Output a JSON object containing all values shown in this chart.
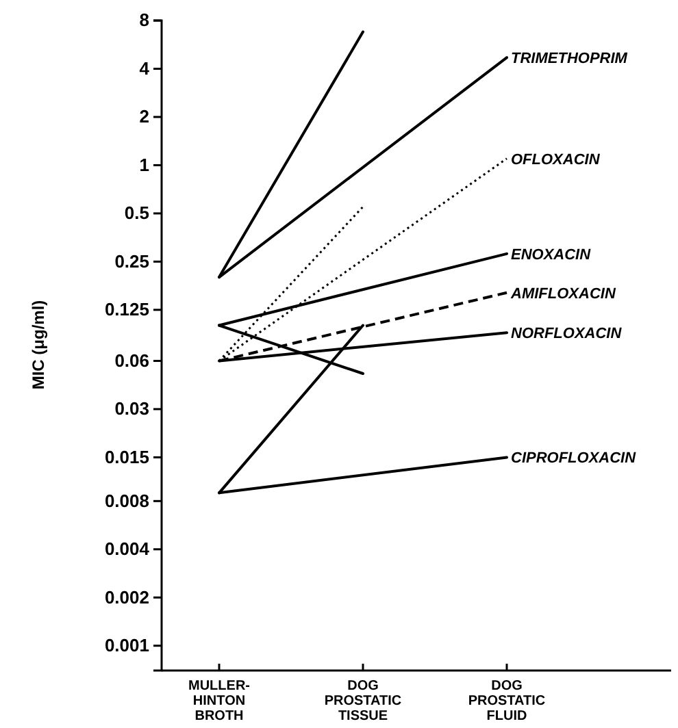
{
  "chart_data": {
    "type": "line",
    "ylabel": "MIC (μg/ml)",
    "categories": [
      "MULLER-\nHINTON\nBROTH",
      "DOG\nPROSTATIC\nTISSUE",
      "DOG\nPROSTATIC\nFLUID"
    ],
    "log": true,
    "ylim": [
      0.0007,
      8
    ],
    "yticks": [
      0.001,
      0.002,
      0.004,
      0.008,
      0.015,
      0.03,
      0.06,
      0.125,
      0.25,
      0.5,
      1,
      2,
      4,
      8
    ],
    "grid": false,
    "legend": false,
    "marker": "none",
    "series": [
      {
        "name": "TRIMETHOPRIM",
        "color": "#000000",
        "line_style": "solid",
        "values": [
          0.2,
          null,
          4.7
        ]
      },
      {
        "color": "#000000",
        "line_style": "solid",
        "values": [
          0.2,
          6.8,
          null
        ]
      },
      {
        "name": "OFLOXACIN",
        "color": "#000000",
        "line_style": "dotted",
        "values": [
          0.06,
          null,
          1.1
        ]
      },
      {
        "color": "#000000",
        "line_style": "dotted",
        "values": [
          0.06,
          0.55,
          null
        ]
      },
      {
        "name": "ENOXACIN",
        "color": "#000000",
        "line_style": "solid",
        "values": [
          0.1,
          null,
          0.28
        ]
      },
      {
        "color": "#000000",
        "line_style": "solid",
        "values": [
          0.1,
          0.05,
          null
        ]
      },
      {
        "name": "AMIFLOXACIN",
        "color": "#000000",
        "line_style": "dashed",
        "values": [
          0.06,
          null,
          0.16
        ]
      },
      {
        "name": "NORFLOXACIN",
        "color": "#000000",
        "line_style": "solid",
        "values": [
          0.06,
          null,
          0.09
        ]
      },
      {
        "name": "CIPROFLOXACIN",
        "color": "#000000",
        "line_style": "solid",
        "values": [
          0.009,
          null,
          0.015
        ]
      },
      {
        "color": "#000000",
        "line_style": "solid",
        "values": [
          0.009,
          0.1,
          null
        ]
      }
    ]
  }
}
